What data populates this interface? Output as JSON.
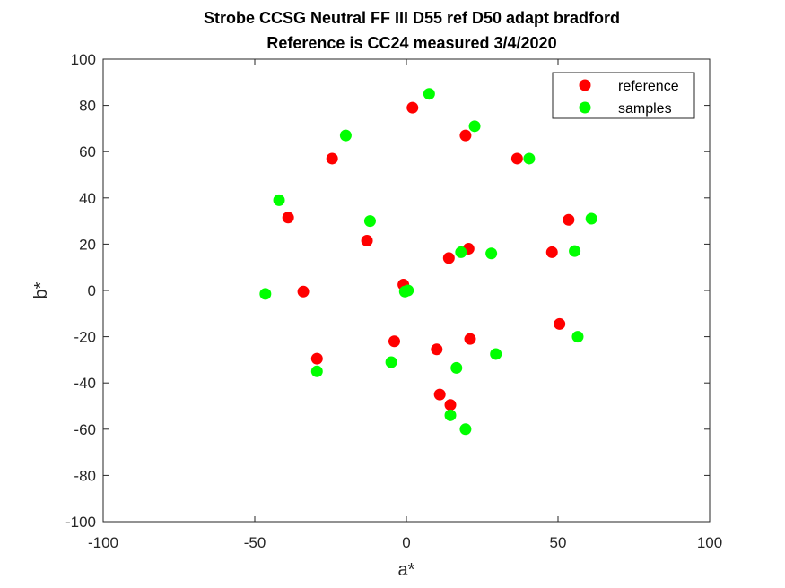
{
  "chart_data": {
    "type": "scatter",
    "title": [
      "Strobe CCSG Neutral FF III D55 ref D50 adapt bradford",
      "Reference is CC24 measured 3/4/2020"
    ],
    "xlabel": "a*",
    "ylabel": "b*",
    "xlim": [
      -100,
      100
    ],
    "ylim": [
      -100,
      100
    ],
    "xticks": [
      -100,
      -50,
      0,
      50,
      100
    ],
    "yticks": [
      -100,
      -80,
      -60,
      -40,
      -20,
      0,
      20,
      40,
      60,
      80,
      100
    ],
    "grid": false,
    "legend_position": "top-right",
    "series": [
      {
        "name": "reference",
        "color": "#ff0000",
        "points": [
          [
            2,
            79
          ],
          [
            19.5,
            67
          ],
          [
            -24.5,
            57
          ],
          [
            36.5,
            57
          ],
          [
            -39,
            31.5
          ],
          [
            53.5,
            30.5
          ],
          [
            -13,
            21.5
          ],
          [
            20.5,
            18
          ],
          [
            14,
            14
          ],
          [
            48,
            16.5
          ],
          [
            -34,
            -0.5
          ],
          [
            -1,
            2.5
          ],
          [
            0,
            0
          ],
          [
            50.5,
            -14.5
          ],
          [
            21,
            -21
          ],
          [
            -4,
            -22
          ],
          [
            10,
            -25.5
          ],
          [
            -29.5,
            -29.5
          ],
          [
            11,
            -45
          ],
          [
            14.5,
            -49.5
          ]
        ]
      },
      {
        "name": "samples",
        "color": "#00ff00",
        "points": [
          [
            7.5,
            85
          ],
          [
            22.5,
            71
          ],
          [
            -20,
            67
          ],
          [
            40.5,
            57
          ],
          [
            -42,
            39
          ],
          [
            -12,
            30
          ],
          [
            61,
            31
          ],
          [
            18,
            16.5
          ],
          [
            28,
            16
          ],
          [
            55.5,
            17
          ],
          [
            -46.5,
            -1.5
          ],
          [
            -0.5,
            -0.5
          ],
          [
            0.5,
            0
          ],
          [
            56.5,
            -20
          ],
          [
            29.5,
            -27.5
          ],
          [
            16.5,
            -33.5
          ],
          [
            -5,
            -31
          ],
          [
            -29.5,
            -35
          ],
          [
            14.5,
            -54
          ],
          [
            19.5,
            -60
          ]
        ]
      }
    ]
  }
}
